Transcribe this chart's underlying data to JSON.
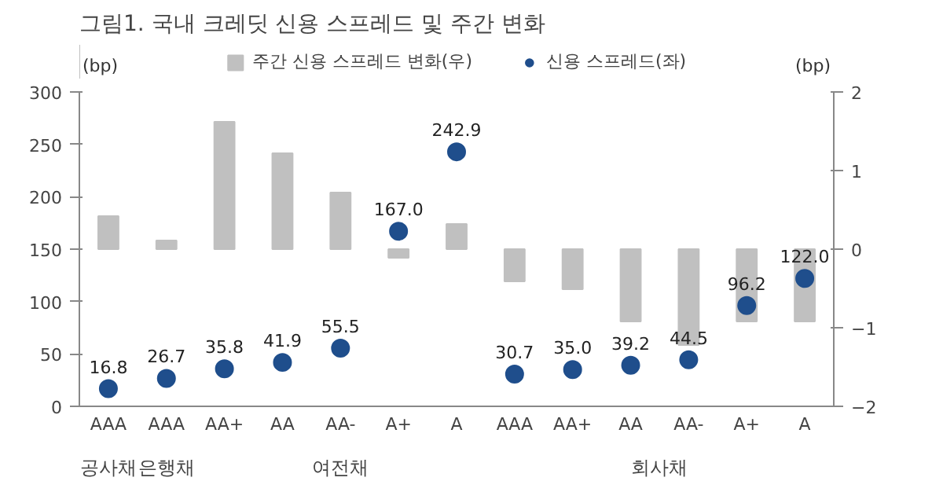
{
  "chart_data": {
    "type": "bar",
    "title": "그림1. 국내 크레딧 신용 스프레드 및 주간 변화",
    "categories": [
      "AAA",
      "AAA",
      "AA+",
      "AA",
      "AA-",
      "A+",
      "A",
      "AAA",
      "AA+",
      "AA",
      "AA-",
      "A+",
      "A"
    ],
    "series": [
      {
        "name": "주간 신용 스프레드 변화(우)",
        "axis": "y2",
        "color": "#c0c0c0",
        "values": [
          0.42,
          0.11,
          1.62,
          1.22,
          0.72,
          -0.11,
          0.32,
          -0.41,
          -0.51,
          -0.92,
          -1.22,
          -0.92,
          -0.92
        ]
      },
      {
        "name": "신용 스프레드(좌)",
        "type": "scatter",
        "color": "#1f4e8c",
        "marker": "circle",
        "values": [
          16.8,
          26.7,
          35.8,
          41.9,
          55.5,
          167.0,
          242.9,
          30.7,
          35.0,
          39.2,
          44.5,
          96.2,
          122.0
        ],
        "value_labels": [
          "16.8",
          "26.7",
          "35.8",
          "41.9",
          "55.5",
          "167.0",
          "242.9",
          "30.7",
          "35.0",
          "39.2",
          "44.5",
          "96.2",
          "122.0"
        ]
      }
    ],
    "ylabel": "(bp)",
    "y2label": "(bp)",
    "ylim": [
      0,
      300
    ],
    "yticks": [
      0,
      50,
      100,
      150,
      200,
      250,
      300
    ],
    "y2lim": [
      -2,
      2
    ],
    "y2ticks": [
      -2,
      -1,
      0,
      1,
      2
    ],
    "annotations": [
      "공사채",
      "은행채",
      "여전채",
      "회사채"
    ],
    "grid": false,
    "legend": "top"
  }
}
